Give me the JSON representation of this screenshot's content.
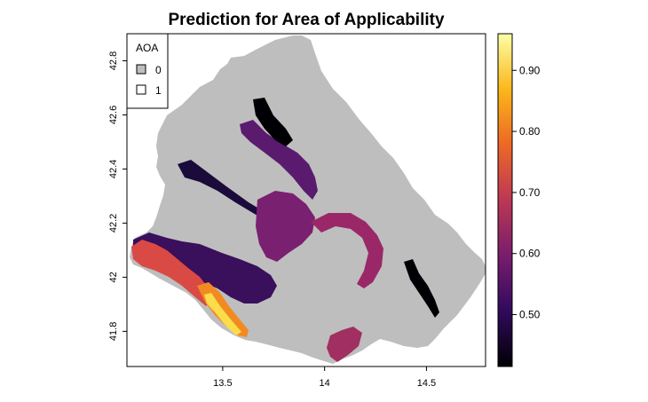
{
  "chart_data": {
    "type": "heatmap",
    "title": "Prediction for Area of Applicability",
    "xlim": [
      13.03,
      14.79
    ],
    "ylim": [
      41.67,
      42.9
    ],
    "x_ticks": [
      {
        "value": 13.5,
        "label": "13.5"
      },
      {
        "value": 14.0,
        "label": "14"
      },
      {
        "value": 14.5,
        "label": "14.5"
      }
    ],
    "y_ticks": [
      {
        "value": 41.8,
        "label": "41.8"
      },
      {
        "value": 42.0,
        "label": "42"
      },
      {
        "value": 42.2,
        "label": "42.2"
      },
      {
        "value": 42.4,
        "label": "42.4"
      },
      {
        "value": 42.6,
        "label": "42.6"
      },
      {
        "value": 42.8,
        "label": "42.8"
      }
    ],
    "legend": {
      "title": "AOA",
      "placement": "top-left",
      "entries": [
        {
          "label": "0",
          "color": "#bebebe"
        },
        {
          "label": "1",
          "color": "#ffffff"
        }
      ]
    },
    "colorbar": {
      "range": [
        0.415,
        0.96
      ],
      "ticks": [
        {
          "value": 0.5,
          "label": "0.50"
        },
        {
          "value": 0.6,
          "label": "0.60"
        },
        {
          "value": 0.7,
          "label": "0.70"
        },
        {
          "value": 0.8,
          "label": "0.80"
        },
        {
          "value": 0.9,
          "label": "0.90"
        }
      ],
      "colormap": "inferno",
      "stops": [
        "#000004",
        "#320a5e",
        "#781c6d",
        "#bc3754",
        "#ed6925",
        "#fbb61a",
        "#fcffa4"
      ]
    },
    "regions": [
      {
        "name": "outside-aoa-region",
        "aoa": 0,
        "color": "#bebebe"
      }
    ]
  }
}
